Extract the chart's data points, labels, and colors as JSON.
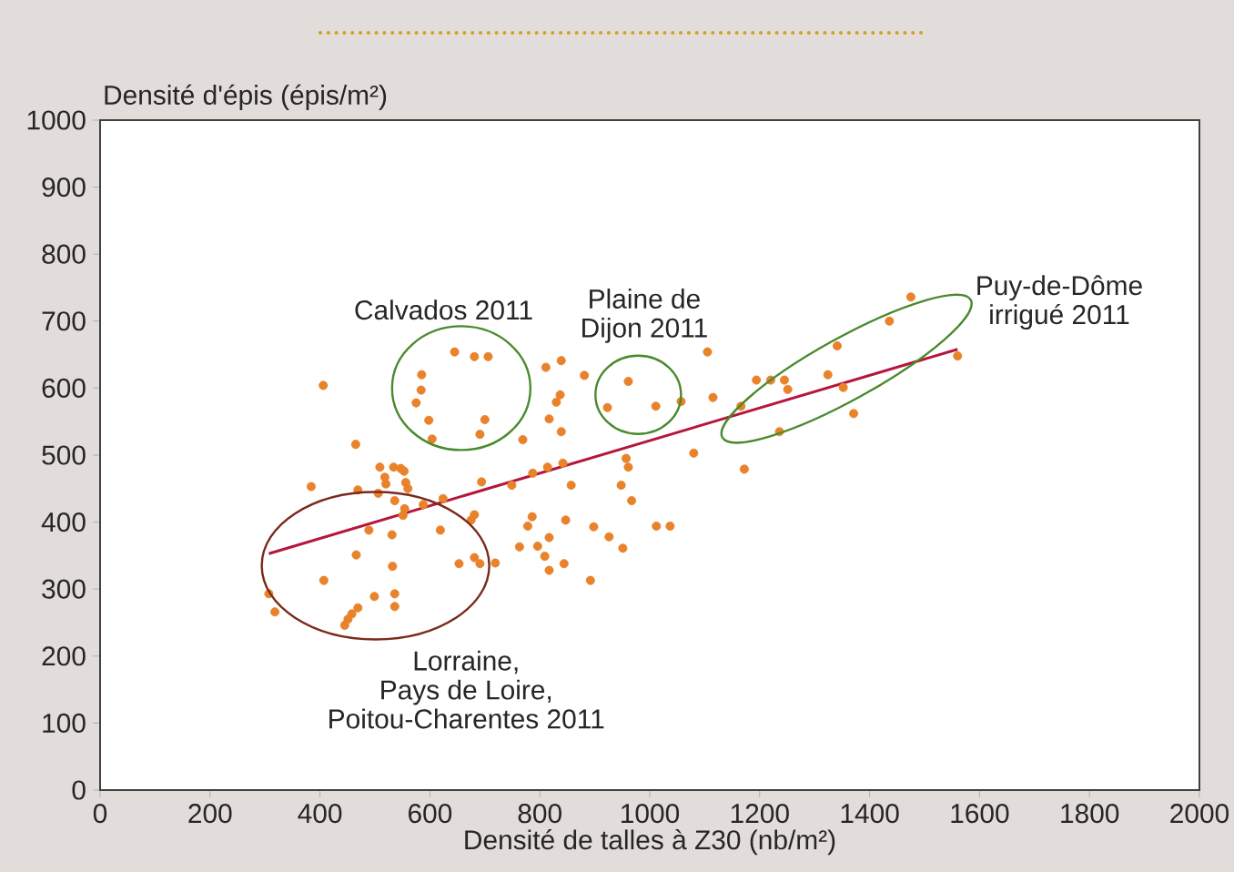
{
  "chart_data": {
    "type": "scatter",
    "xlabel": "Densité de talles à Z30 (nb/m²)",
    "ylabel": "Densité d'épis (épis/m²)",
    "xlim": [
      0,
      2000
    ],
    "xticks": [
      0,
      200,
      400,
      600,
      800,
      1000,
      1200,
      1400,
      1600,
      1800,
      2000
    ],
    "ylim": [
      0,
      1000
    ],
    "yticks": [
      0,
      100,
      200,
      300,
      400,
      500,
      600,
      700,
      800,
      900,
      1000
    ],
    "marker": "circle",
    "grid": false,
    "annotations": [
      "Calvados 2011",
      "Plaine de Dijon 2011",
      "Puy-de-Dôme irrigué 2011",
      "Lorraine, Pays de Loire, Poitou-Charentes  2011"
    ],
    "series": [
      {
        "color": "#e8832b",
        "x": [
          406,
          645,
          681,
          706,
          585,
          584,
          575,
          598,
          700,
          604,
          691,
          811,
          839,
          881,
          837,
          830,
          817,
          839,
          769,
          961,
          923,
          465,
          384,
          509,
          518,
          520,
          534,
          547,
          553,
          556,
          560,
          469,
          506,
          536,
          554,
          551,
          588,
          624,
          694,
          749,
          787,
          814,
          842,
          857,
          957,
          961,
          948,
          967,
          681,
          675,
          619,
          489,
          531,
          466,
          532,
          407,
          307,
          318,
          499,
          536,
          536,
          469,
          458,
          451,
          445,
          653,
          681,
          691,
          719,
          786,
          778,
          763,
          796,
          817,
          847,
          809,
          817,
          844,
          892,
          898,
          926,
          951,
          1011,
          1057,
          1105,
          1115,
          1080,
          1012,
          1037,
          1172,
          1166,
          1194,
          1220,
          1245,
          1251,
          1236,
          1324,
          1341,
          1352,
          1371,
          1436,
          1475,
          1560
        ],
        "values": [
          604,
          654,
          647,
          647,
          620,
          597,
          578,
          552,
          553,
          524,
          531,
          631,
          641,
          619,
          590,
          579,
          554,
          535,
          523,
          610,
          571,
          516,
          453,
          482,
          467,
          457,
          482,
          480,
          476,
          459,
          450,
          448,
          443,
          432,
          420,
          410,
          426,
          435,
          460,
          455,
          473,
          482,
          488,
          455,
          495,
          482,
          455,
          432,
          411,
          403,
          388,
          388,
          381,
          351,
          334,
          313,
          293,
          266,
          289,
          293,
          274,
          272,
          263,
          255,
          246,
          338,
          347,
          338,
          339,
          408,
          394,
          363,
          364,
          377,
          403,
          349,
          328,
          338,
          313,
          393,
          378,
          361,
          573,
          580,
          654,
          586,
          503,
          394,
          394,
          479,
          573,
          612,
          612,
          612,
          598,
          535,
          620,
          663,
          601,
          562,
          700,
          736,
          648
        ]
      },
      {
        "type": "line",
        "marker": "none",
        "color": "#b5163b",
        "x": [
          307,
          1560
        ],
        "values": [
          353,
          658
        ]
      }
    ]
  }
}
